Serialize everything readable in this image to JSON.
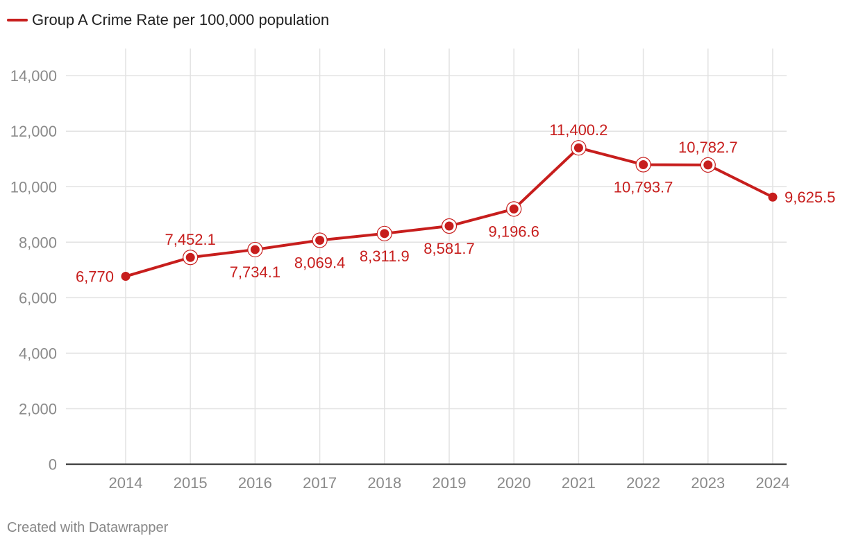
{
  "chart_data": {
    "type": "line",
    "title": "",
    "xlabel": "",
    "ylabel": "",
    "ylim": [
      0,
      15000
    ],
    "yticks": [
      0,
      2000,
      4000,
      6000,
      8000,
      10000,
      12000,
      14000
    ],
    "ytick_labels": [
      "0",
      "2,000",
      "4,000",
      "6,000",
      "8,000",
      "10,000",
      "12,000",
      "14,000"
    ],
    "categories": [
      "2014",
      "2015",
      "2016",
      "2017",
      "2018",
      "2019",
      "2020",
      "2021",
      "2022",
      "2023",
      "2024"
    ],
    "series": [
      {
        "name": "Group A Crime Rate per 100,000 population",
        "color": "#c71e1d",
        "values": [
          6770,
          7452.1,
          7734.1,
          8069.4,
          8311.9,
          8581.7,
          9196.6,
          11400.2,
          10793.7,
          10782.7,
          9625.5
        ],
        "labels": [
          "6,770",
          "7,452.1",
          "7,734.1",
          "8,069.4",
          "8,311.9",
          "8,581.7",
          "9,196.6",
          "11,400.2",
          "10,793.7",
          "10,782.7",
          "9,625.5"
        ],
        "label_positions": [
          "left",
          "above",
          "below",
          "below",
          "below",
          "below",
          "below",
          "above",
          "below",
          "above",
          "right"
        ]
      }
    ],
    "legend_position": "top-left",
    "grid": true
  },
  "legend": {
    "label": "Group A Crime Rate per 100,000 population",
    "color": "#c71e1d"
  },
  "footer": {
    "credit": "Created with Datawrapper"
  }
}
